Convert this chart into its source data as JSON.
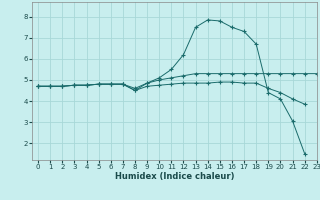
{
  "title": "",
  "xlabel": "Humidex (Indice chaleur)",
  "ylabel": "",
  "background_color": "#c8eeee",
  "grid_color": "#a8d8d8",
  "line_color": "#1a6b6b",
  "xlim": [
    -0.5,
    23
  ],
  "ylim": [
    1.2,
    8.7
  ],
  "yticks": [
    2,
    3,
    4,
    5,
    6,
    7,
    8
  ],
  "xticks": [
    0,
    1,
    2,
    3,
    4,
    5,
    6,
    7,
    8,
    9,
    10,
    11,
    12,
    13,
    14,
    15,
    16,
    17,
    18,
    19,
    20,
    21,
    22,
    23
  ],
  "series": [
    {
      "x": [
        0,
        1,
        2,
        3,
        4,
        5,
        6,
        7,
        8,
        9,
        10,
        11,
        12,
        13,
        14,
        15,
        16,
        17,
        18,
        19,
        20,
        21,
        22,
        23
      ],
      "y": [
        4.7,
        4.7,
        4.7,
        4.75,
        4.75,
        4.8,
        4.8,
        4.8,
        4.5,
        4.85,
        5.0,
        5.1,
        5.2,
        5.3,
        5.3,
        5.3,
        5.3,
        5.3,
        5.3,
        5.3,
        5.3,
        5.3,
        5.3,
        5.3
      ]
    },
    {
      "x": [
        0,
        1,
        2,
        3,
        4,
        5,
        6,
        7,
        8,
        9,
        10,
        11,
        12,
        13,
        14,
        15,
        16,
        17,
        18,
        19,
        20,
        21,
        22,
        23
      ],
      "y": [
        4.7,
        4.7,
        4.7,
        4.75,
        4.75,
        4.8,
        4.8,
        4.8,
        4.6,
        4.85,
        5.1,
        5.5,
        6.2,
        7.5,
        7.85,
        7.8,
        7.5,
        7.3,
        6.7,
        4.4,
        4.1,
        3.05,
        1.5,
        null
      ]
    },
    {
      "x": [
        0,
        1,
        2,
        3,
        4,
        5,
        6,
        7,
        8,
        9,
        10,
        11,
        12,
        13,
        14,
        15,
        16,
        17,
        18,
        19,
        20,
        21,
        22,
        23
      ],
      "y": [
        4.7,
        4.7,
        4.7,
        4.75,
        4.75,
        4.8,
        4.8,
        4.8,
        4.5,
        4.7,
        4.75,
        4.8,
        4.85,
        4.85,
        4.85,
        4.9,
        4.9,
        4.85,
        4.85,
        4.6,
        4.4,
        4.1,
        3.85,
        null
      ]
    }
  ],
  "tick_fontsize": 5,
  "xlabel_fontsize": 6,
  "marker_size": 3,
  "linewidth": 0.7
}
